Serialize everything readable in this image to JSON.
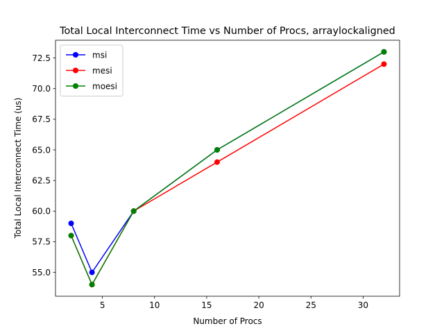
{
  "chart_data": {
    "type": "line",
    "title": "Total Local Interconnect Time vs Number of Procs, arraylockaligned",
    "xlabel": "Number of Procs",
    "ylabel": "Total Local Interconnect Time (us)",
    "x": [
      2,
      4,
      8,
      16,
      32
    ],
    "xlim": [
      0.5,
      33.5
    ],
    "ylim": [
      53.05,
      73.95
    ],
    "xticks": [
      5,
      10,
      15,
      20,
      25,
      30
    ],
    "yticks": [
      55.0,
      57.5,
      60.0,
      62.5,
      65.0,
      67.5,
      70.0,
      72.5
    ],
    "xtick_labels": [
      "5",
      "10",
      "15",
      "20",
      "25",
      "30"
    ],
    "ytick_labels": [
      "55.0",
      "57.5",
      "60.0",
      "62.5",
      "65.0",
      "67.5",
      "70.0",
      "72.5"
    ],
    "grid": false,
    "legend_position": "top-left",
    "series": [
      {
        "name": "msi",
        "color": "#0000ff",
        "values": [
          59,
          55,
          60,
          65,
          73
        ]
      },
      {
        "name": "mesi",
        "color": "#ff0000",
        "values": [
          58,
          54,
          60,
          64,
          72
        ]
      },
      {
        "name": "moesi",
        "color": "#008000",
        "values": [
          58,
          54,
          60,
          65,
          73
        ]
      }
    ]
  }
}
